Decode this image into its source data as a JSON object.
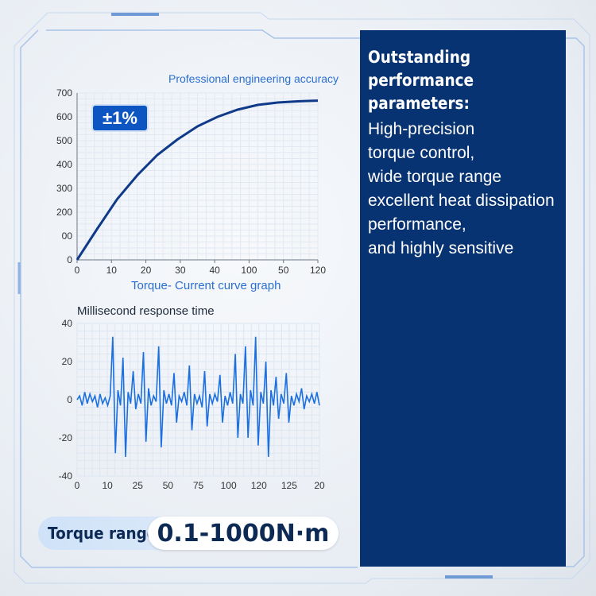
{
  "chart1": {
    "note": "Professional engineering accuracy",
    "badge": "±1%",
    "xlabel": "Torque- Current curve graph",
    "y_ticks": [
      "0",
      "00",
      "200",
      "300",
      "400",
      "500",
      "600",
      "700"
    ],
    "x_ticks": [
      "0",
      "10",
      "20",
      "30",
      "40",
      "100",
      "50",
      "120"
    ]
  },
  "chart2": {
    "title": "Millisecond response time",
    "y_ticks": [
      "-40",
      "-20",
      "0",
      "20",
      "40"
    ],
    "x_ticks": [
      "0",
      "10",
      "25",
      "50",
      "75",
      "100",
      "120",
      "125",
      "20"
    ]
  },
  "chart_data": [
    {
      "type": "line",
      "title": "",
      "xlabel": "Torque- Current curve graph",
      "ylabel": "",
      "xlim": [
        0,
        120
      ],
      "ylim": [
        0,
        700
      ],
      "x": [
        0,
        10,
        20,
        30,
        40,
        50,
        60,
        70,
        80,
        90,
        100,
        110,
        120
      ],
      "series": [
        {
          "values": [
            0,
            130,
            255,
            355,
            440,
            505,
            560,
            600,
            630,
            650,
            660,
            665,
            668
          ]
        }
      ],
      "grid": true,
      "color": "#0f3a8a"
    },
    {
      "type": "line",
      "title": "Millisecond response time",
      "xlabel": "",
      "ylabel": "",
      "ylim": [
        -40,
        40
      ],
      "series": [
        {
          "values": [
            0,
            2,
            -3,
            4,
            -2,
            3,
            -1,
            2,
            -4,
            3,
            -2,
            1,
            -3,
            2,
            33,
            -28,
            5,
            -3,
            22,
            -30,
            4,
            -2,
            15,
            -5,
            3,
            -2,
            25,
            -22,
            6,
            -3,
            2,
            -1,
            28,
            -25,
            5,
            -2,
            3,
            -3,
            14,
            -12,
            2,
            -1,
            4,
            -3,
            18,
            -16,
            3,
            -2,
            2,
            -4,
            15,
            -14,
            3,
            -2,
            3,
            -1,
            13,
            -12,
            2,
            -3,
            4,
            -2,
            24,
            -20,
            3,
            -2,
            28,
            -20,
            5,
            -3,
            33,
            -24,
            4,
            -2,
            20,
            -30,
            5,
            -3,
            12,
            -10,
            3,
            -2,
            14,
            -12,
            2,
            -3,
            3,
            -1,
            6,
            -5,
            2,
            -1,
            3,
            -2,
            4,
            -3
          ]
        }
      ],
      "grid": true,
      "color": "#1b6fe0"
    }
  ],
  "torque": {
    "label": "Torque range",
    "value": "0.1-1000N·m"
  },
  "panel": {
    "heading": "Outstanding performance parameters:",
    "lines": [
      "High-precision",
      "torque control,",
      "wide torque range",
      "excellent heat dissipation",
      "performance,",
      "and highly sensitive"
    ]
  },
  "colors": {
    "panel_bg": "#083372",
    "accent": "#0d56c2",
    "line1": "#0f3a8a",
    "line2": "#1b6fe0"
  }
}
